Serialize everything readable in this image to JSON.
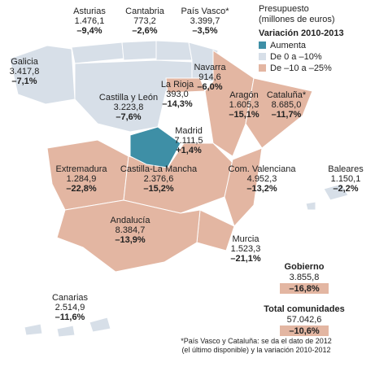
{
  "map": {
    "regions": [
      {
        "name": "Asturias",
        "budget": "1.476,1",
        "change": "–9,4%"
      },
      {
        "name": "Cantabria",
        "budget": "773,2",
        "change": "–2,6%"
      },
      {
        "name": "País Vasco*",
        "budget": "3.399,7",
        "change": "–3,5%"
      },
      {
        "name": "Galicia",
        "budget": "3.417,8",
        "change": "–7,1%"
      },
      {
        "name": "Navarra",
        "budget": "914,6",
        "change": "–6,0%"
      },
      {
        "name": "La Rioja",
        "budget": "393,0",
        "change": "–14,3%"
      },
      {
        "name": "Castilla y León",
        "budget": "3.223,8",
        "change": "–7,6%"
      },
      {
        "name": "Aragón",
        "budget": "1.605,3",
        "change": "–15,1%"
      },
      {
        "name": "Cataluña*",
        "budget": "8.685,0",
        "change": "–11,7%"
      },
      {
        "name": "Madrid",
        "budget": "7.111,5",
        "change": "+1,4%"
      },
      {
        "name": "Extremadura",
        "budget": "1.284,9",
        "change": "–22,8%"
      },
      {
        "name": "Castilla-La Mancha",
        "budget": "2.376,6",
        "change": "–15,2%"
      },
      {
        "name": "Com. Valenciana",
        "budget": "4.952,3",
        "change": "–13,2%"
      },
      {
        "name": "Baleares",
        "budget": "1.150,1",
        "change": "–2,2%"
      },
      {
        "name": "Andalucía",
        "budget": "8.384,7",
        "change": "–13,9%"
      },
      {
        "name": "Murcia",
        "budget": "1.523,3",
        "change": "–21,1%"
      },
      {
        "name": "Canarias",
        "budget": "2.514,9",
        "change": "–11,6%"
      }
    ],
    "legend": {
      "budget_title_1": "Presupuesto",
      "budget_title_2": "(millones de euros)",
      "change_title": "Variación 2010-2013",
      "items": [
        "Aumenta",
        "De 0 a –10%",
        "De –10 a –25%"
      ]
    },
    "totals": [
      {
        "name": "Gobierno",
        "budget": "3.855,8",
        "change": "–16,8%"
      },
      {
        "name": "Total comunidades",
        "budget": "57.042,6",
        "change": "–10,6%"
      }
    ],
    "footnote": [
      "*País Vasco y Cataluña: se da el dato de 2012",
      "(el último disponible) y la variación 2010-2012"
    ]
  }
}
